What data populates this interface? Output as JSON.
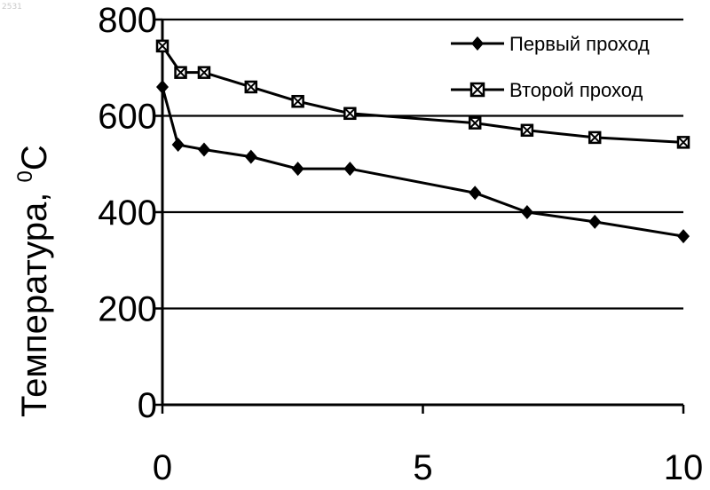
{
  "corner_label": "2531",
  "chart_data": {
    "type": "line",
    "xlim": [
      0,
      10
    ],
    "ylim": [
      0,
      800
    ],
    "xticks": [
      "0",
      "5",
      "10"
    ],
    "yticks": [
      "0",
      "200",
      "400",
      "600",
      "800"
    ],
    "ylabel": "Температура, ",
    "ylabel_sup": "0",
    "ylabel_unit": "C",
    "xlabel": "",
    "grid": "horizontal",
    "legend_position": "top-right",
    "series": [
      {
        "name": "Первый проход",
        "marker": "diamond",
        "x": [
          0,
          0.3,
          0.8,
          1.7,
          2.6,
          3.6,
          6.0,
          7.0,
          8.3,
          10.0
        ],
        "y": [
          660,
          540,
          530,
          515,
          490,
          490,
          440,
          400,
          380,
          350
        ]
      },
      {
        "name": "Второй проход",
        "marker": "square-x",
        "x": [
          0,
          0.35,
          0.8,
          1.7,
          2.6,
          3.6,
          6.0,
          7.0,
          8.3,
          10.0
        ],
        "y": [
          745,
          690,
          690,
          660,
          630,
          605,
          585,
          570,
          555,
          545
        ]
      }
    ]
  }
}
